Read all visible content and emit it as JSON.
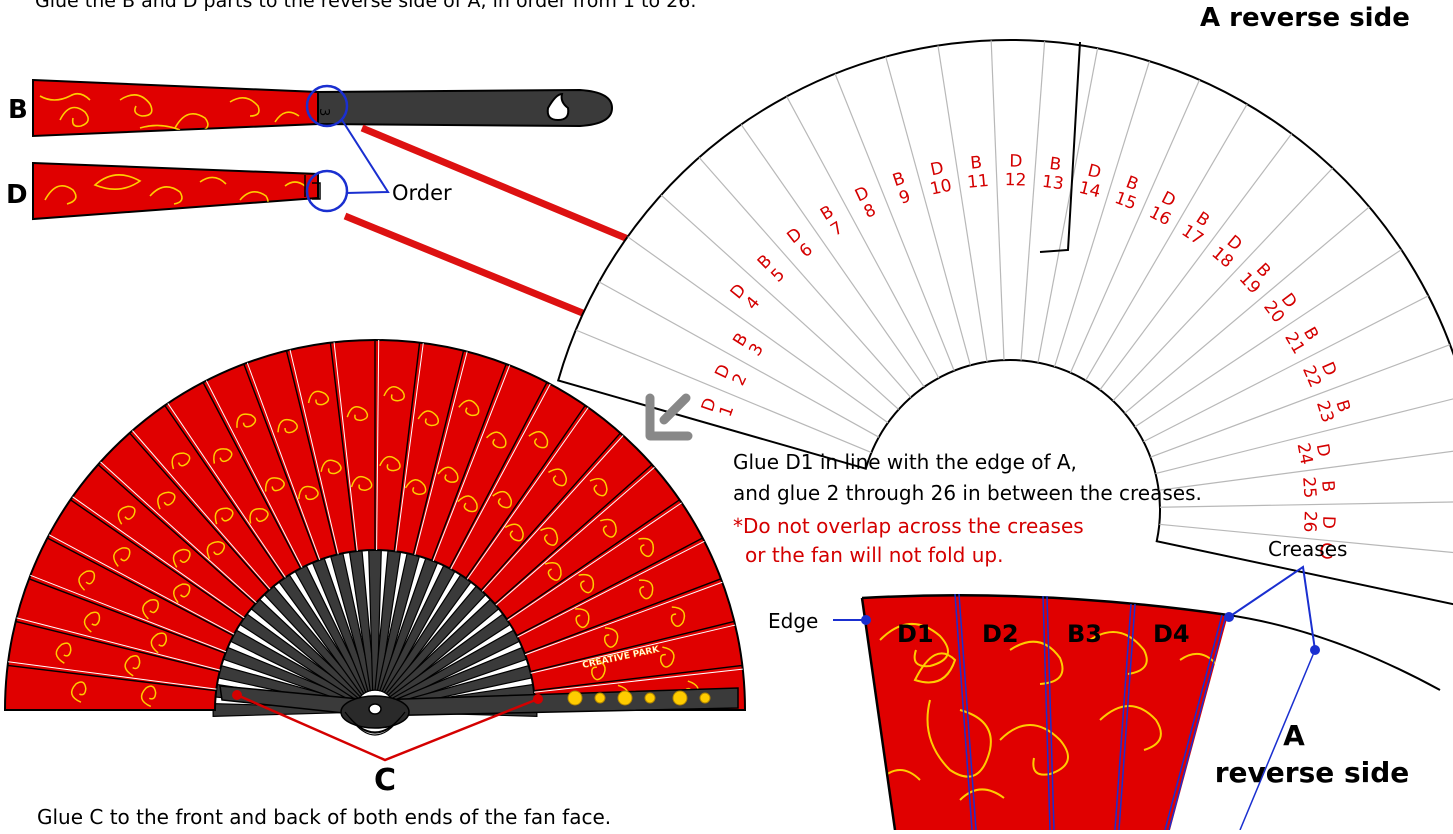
{
  "instructions": {
    "top": "Glue the B and D parts to the reverse side of A, in order from 1 to 26.",
    "align": "Glue D1 in line with the edge of A,",
    "between": "and glue 2 through 26 in between the creases.",
    "warning_1": "*Do not overlap across the creases",
    "warning_2": "or the fan will not fold up.",
    "bottom": "Glue C to the front and back of both ends of the fan face."
  },
  "labels": {
    "part_b": "B",
    "part_d": "D",
    "part_c": "C",
    "order": "Order",
    "a_reverse_side": "A reverse side",
    "creases": "Creases",
    "edge": "Edge",
    "zoom_a": "A",
    "zoom_reverse_side": "reverse side",
    "b_stick_number": "3",
    "fan_end_c": "C",
    "brand": "CREATIVE PARK"
  },
  "segments": [
    "D 1",
    "D 2",
    "B 3",
    "D 4",
    "B 5",
    "D 6",
    "B 7",
    "D 8",
    "B 9",
    "D 10",
    "B 11",
    "D 12",
    "B 13",
    "D 14",
    "B 15",
    "D 16",
    "B 17",
    "D 18",
    "B 19",
    "D 20",
    "B 21",
    "D 22",
    "B 23",
    "D 24",
    "B 25",
    "D 26"
  ],
  "zoom_strips": [
    "D1",
    "D2",
    "B3",
    "D4"
  ],
  "colors": {
    "fan_red": "#e00000",
    "ornament_gold": "#ffcc00",
    "stick_dark": "#3a3a3a",
    "label_red": "#d40000",
    "callout_blue": "#1a2fd0",
    "arrow_red": "#dd1111",
    "next_arrow_gray": "#888888"
  }
}
